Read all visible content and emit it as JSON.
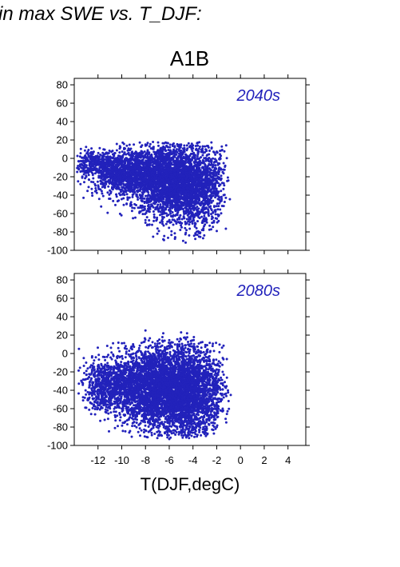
{
  "figure": {
    "title": "in max SWE vs. T_DJF:",
    "scenario": "A1B",
    "xlabel": "T(DJF,degC)"
  },
  "chart_data": [
    {
      "type": "scatter",
      "panel_label": "2040s",
      "xlim": [
        -14,
        5.5
      ],
      "ylim": [
        -100,
        87
      ],
      "xticks": [
        -12,
        -10,
        -8,
        -6,
        -4,
        -2,
        0,
        2,
        4
      ],
      "yticks": [
        80,
        60,
        40,
        20,
        0,
        -20,
        -40,
        -60,
        -80,
        -100
      ],
      "show_xtick_labels": false,
      "point_color": "#2222bb",
      "label_color": "#2222bb",
      "grid": false,
      "series": [
        {
          "clusters": [
            {
              "cx": -12.5,
              "cy": -5,
              "sx": 0.8,
              "sy": 7,
              "n": 260
            },
            {
              "cx": -10.5,
              "cy": -15,
              "sx": 1.2,
              "sy": 11,
              "n": 650
            },
            {
              "cx": -8.5,
              "cy": -18,
              "sx": 1.2,
              "sy": 15,
              "n": 850
            },
            {
              "cx": -6.2,
              "cy": -25,
              "sx": 1.1,
              "sy": 20,
              "n": 1500
            },
            {
              "cx": -4.2,
              "cy": -30,
              "sx": 1.0,
              "sy": 22,
              "n": 1300
            },
            {
              "cx": -2.5,
              "cy": -28,
              "sx": 0.7,
              "sy": 20,
              "n": 350
            }
          ],
          "outliers": [
            [
              -13.5,
              2
            ],
            [
              -13.0,
              -2
            ],
            [
              -13.2,
              -5
            ],
            [
              -11,
              -35
            ],
            [
              -9.5,
              -45
            ],
            [
              -8.5,
              -58
            ],
            [
              -8,
              -70
            ],
            [
              -7,
              -82
            ],
            [
              -6.5,
              -88
            ],
            [
              -5.5,
              -86
            ],
            [
              -3.5,
              -80
            ],
            [
              -2,
              -79
            ],
            [
              -1.5,
              -15
            ],
            [
              -1.8,
              -30
            ],
            [
              -8,
              15
            ],
            [
              -5,
              15
            ],
            [
              -4,
              14
            ],
            [
              -3,
              13
            ]
          ]
        }
      ]
    },
    {
      "type": "scatter",
      "panel_label": "2080s",
      "xlim": [
        -14,
        5.5
      ],
      "ylim": [
        -100,
        87
      ],
      "xticks": [
        -12,
        -10,
        -8,
        -6,
        -4,
        -2,
        0,
        2,
        4
      ],
      "yticks": [
        80,
        60,
        40,
        20,
        0,
        -20,
        -40,
        -60,
        -80,
        -100
      ],
      "show_xtick_labels": true,
      "point_color": "#2222bb",
      "label_color": "#2222bb",
      "grid": false,
      "series": [
        {
          "clusters": [
            {
              "cx": -11.5,
              "cy": -35,
              "sx": 0.9,
              "sy": 13,
              "n": 500
            },
            {
              "cx": -9.5,
              "cy": -35,
              "sx": 1.2,
              "sy": 18,
              "n": 900
            },
            {
              "cx": -7.5,
              "cy": -38,
              "sx": 1.1,
              "sy": 22,
              "n": 1100
            },
            {
              "cx": -5.8,
              "cy": -40,
              "sx": 1.1,
              "sy": 25,
              "n": 1600
            },
            {
              "cx": -4.0,
              "cy": -42,
              "sx": 0.9,
              "sy": 25,
              "n": 1300
            },
            {
              "cx": -2.3,
              "cy": -40,
              "sx": 0.6,
              "sy": 20,
              "n": 300
            }
          ],
          "outliers": [
            [
              -13.6,
              5
            ],
            [
              -13.2,
              -5
            ],
            [
              -13,
              -10
            ],
            [
              -12.5,
              -20
            ],
            [
              -8,
              25
            ],
            [
              -6.5,
              22
            ],
            [
              -5,
              23
            ],
            [
              -4.5,
              22
            ],
            [
              -7,
              -92
            ],
            [
              -6,
              -93
            ],
            [
              -4.5,
              -90
            ],
            [
              -3,
              -85
            ],
            [
              -2,
              -80
            ],
            [
              -1.5,
              -60
            ],
            [
              -1.2,
              -75
            ],
            [
              -1.5,
              -20
            ],
            [
              -10,
              -60
            ],
            [
              -11,
              -55
            ],
            [
              -9,
              -75
            ]
          ]
        }
      ]
    }
  ]
}
